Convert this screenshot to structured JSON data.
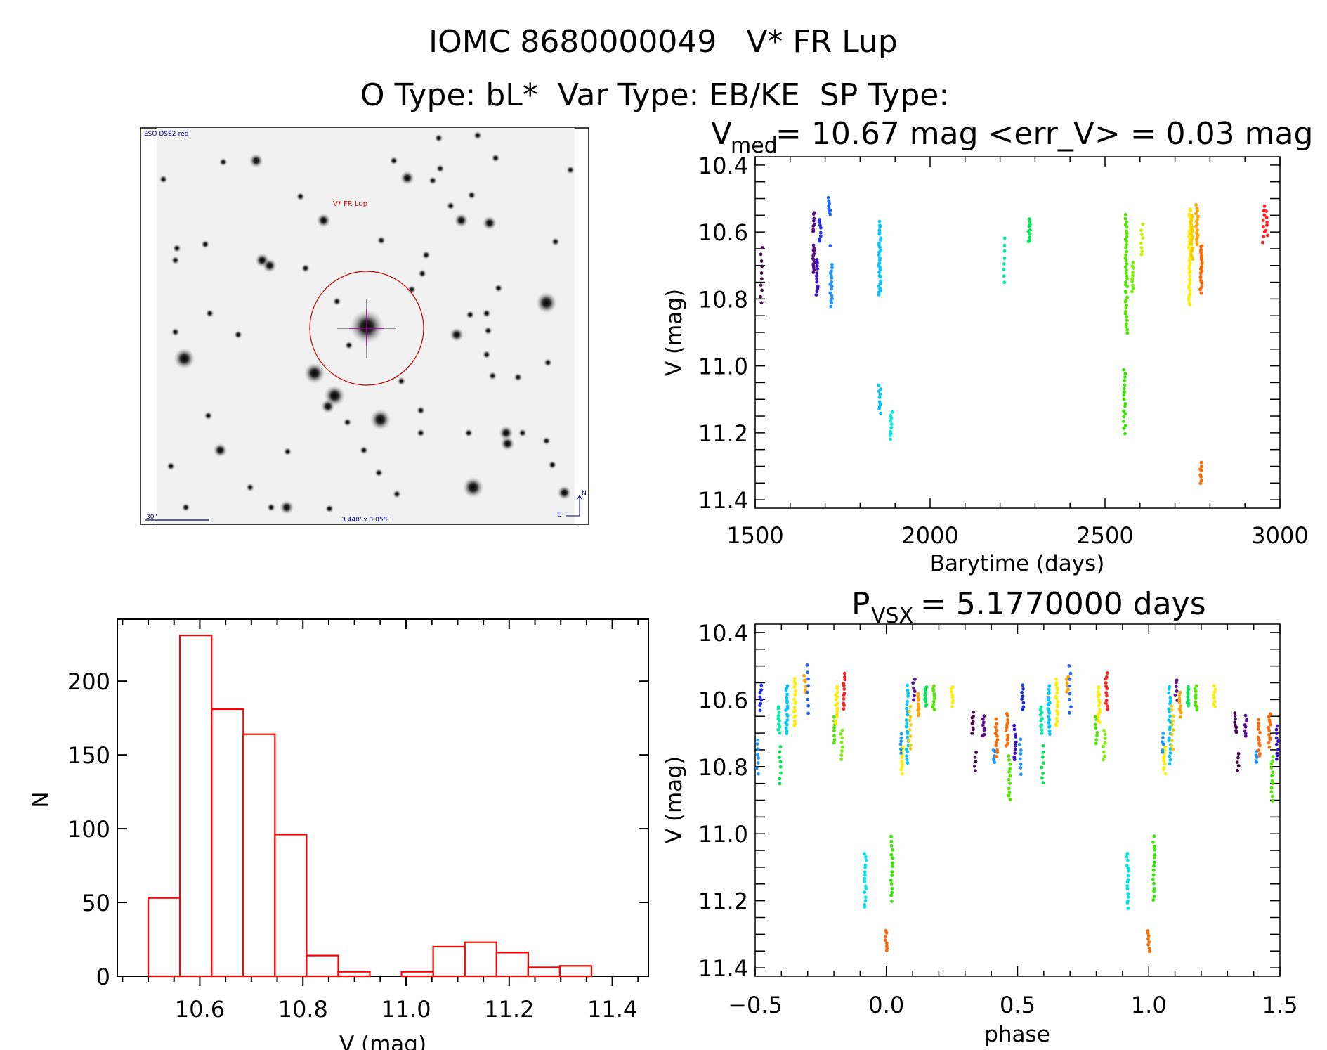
{
  "header": {
    "title": "IOMC 8680000049   V* FR Lup",
    "subtitle": "O Type: bL*  Var Type: EB/KE  SP Type:"
  },
  "finder_image": {
    "survey_label": "ESO DSS2-red",
    "target_label": "V* FR Lup",
    "scale_label": "30\"",
    "field_size_label": "3.448' x 3.058'",
    "north_label": "N",
    "east_label": "E"
  },
  "colors": {
    "hist": "#ff0000",
    "circle": "#c00000",
    "crosshair": "#9a009a",
    "overlay_text": "#00008c"
  },
  "chart_data": [
    {
      "id": "light_curve",
      "type": "scatter",
      "title_main": "V",
      "title_sub": "med",
      "title_rest": " = 10.67 mag <err_V> = 0.03 mag",
      "xlabel": "Barytime (days)",
      "ylabel": "V (mag)",
      "xlim": [
        1500,
        3000
      ],
      "ylim": [
        10.375,
        11.425
      ],
      "y_inverted": true,
      "xticks": [
        {
          "v": 1500,
          "label": "1500"
        },
        {
          "v": 2000,
          "label": "2000"
        },
        {
          "v": 2500,
          "label": "2500"
        },
        {
          "v": 3000,
          "label": "3000"
        }
      ],
      "yticks": [
        {
          "v": 10.4,
          "label": "10.4"
        },
        {
          "v": 10.6,
          "label": "10.6"
        },
        {
          "v": 10.8,
          "label": "10.8"
        },
        {
          "v": 11.0,
          "label": "11.0"
        },
        {
          "v": 11.2,
          "label": "11.2"
        },
        {
          "v": 11.4,
          "label": "11.4"
        }
      ],
      "groups": [
        {
          "t": 1518,
          "v": [
            10.65,
            10.81
          ],
          "n": 10,
          "color": "#4b0a50"
        },
        {
          "t": 1667,
          "v": [
            10.54,
            10.6
          ],
          "n": 8,
          "color": "#5a0a8c"
        },
        {
          "t": 1668,
          "v": [
            10.64,
            10.72
          ],
          "n": 14,
          "color": "#5a0a8c"
        },
        {
          "t": 1677,
          "v": [
            10.68,
            10.79
          ],
          "n": 12,
          "color": "#3c14c8"
        },
        {
          "t": 1685,
          "v": [
            10.56,
            10.63
          ],
          "n": 8,
          "color": "#2030e0"
        },
        {
          "t": 1712,
          "v": [
            10.5,
            10.55
          ],
          "n": 8,
          "color": "#1e64ff"
        },
        {
          "t": 1712,
          "v": [
            10.64,
            10.64
          ],
          "n": 1,
          "color": "#1e64ff"
        },
        {
          "t": 1717,
          "v": [
            10.7,
            10.82
          ],
          "n": 16,
          "color": "#1e96ff"
        },
        {
          "t": 1856,
          "v": [
            10.57,
            10.79
          ],
          "n": 30,
          "color": "#00c8ff"
        },
        {
          "t": 1856,
          "v": [
            11.06,
            11.14
          ],
          "n": 10,
          "color": "#00c8ff"
        },
        {
          "t": 1889,
          "v": [
            11.14,
            11.22
          ],
          "n": 10,
          "color": "#00e6e6"
        },
        {
          "t": 2211,
          "v": [
            10.62,
            10.75
          ],
          "n": 8,
          "color": "#00f0a0"
        },
        {
          "t": 2283,
          "v": [
            10.56,
            10.63
          ],
          "n": 10,
          "color": "#00e650"
        },
        {
          "t": 2556,
          "v": [
            11.01,
            11.2
          ],
          "n": 18,
          "color": "#32e600"
        },
        {
          "t": 2561,
          "v": [
            10.55,
            10.9
          ],
          "n": 40,
          "color": "#50e600"
        },
        {
          "t": 2580,
          "v": [
            10.69,
            10.78
          ],
          "n": 10,
          "color": "#78f000"
        },
        {
          "t": 2606,
          "v": [
            10.58,
            10.67
          ],
          "n": 8,
          "color": "#c8f000"
        },
        {
          "t": 2742,
          "v": [
            10.53,
            10.82
          ],
          "n": 40,
          "color": "#ffee00"
        },
        {
          "t": 2748,
          "v": [
            10.55,
            10.68
          ],
          "n": 20,
          "color": "#f0d000"
        },
        {
          "t": 2763,
          "v": [
            10.52,
            10.64
          ],
          "n": 16,
          "color": "#ffa500"
        },
        {
          "t": 2775,
          "v": [
            10.64,
            10.78
          ],
          "n": 24,
          "color": "#ff6a00"
        },
        {
          "t": 2775,
          "v": [
            11.29,
            11.35
          ],
          "n": 8,
          "color": "#ff6a00"
        },
        {
          "t": 2953,
          "v": [
            10.52,
            10.63
          ],
          "n": 8,
          "color": "#ff1e1e"
        },
        {
          "t": 2963,
          "v": [
            10.54,
            10.61
          ],
          "n": 6,
          "color": "#ff1e1e"
        }
      ]
    },
    {
      "id": "phase_curve",
      "type": "scatter",
      "title_main": "P",
      "title_sub": "VSX",
      "title_rest": " = 5.1770000 days",
      "xlabel": "phase",
      "ylabel": "V (mag)",
      "xlim": [
        -0.5,
        1.5
      ],
      "ylim": [
        10.375,
        11.425
      ],
      "y_inverted": true,
      "xticks": [
        {
          "v": -0.5,
          "label": "−0.5"
        },
        {
          "v": 0.0,
          "label": "0.0"
        },
        {
          "v": 0.5,
          "label": "0.5"
        },
        {
          "v": 1.0,
          "label": "1.0"
        },
        {
          "v": 1.5,
          "label": "1.5"
        }
      ],
      "yticks": [
        {
          "v": 10.4,
          "label": "10.4"
        },
        {
          "v": 10.6,
          "label": "10.6"
        },
        {
          "v": 10.8,
          "label": "10.8"
        },
        {
          "v": 11.0,
          "label": "11.0"
        },
        {
          "v": 11.2,
          "label": "11.2"
        },
        {
          "v": 11.4,
          "label": "11.4"
        }
      ],
      "groups": [
        {
          "phase": 0.0,
          "v": [
            11.29,
            11.35
          ],
          "n": 8,
          "color": "#ff6a00"
        },
        {
          "phase": 0.02,
          "v": [
            11.01,
            11.2
          ],
          "n": 16,
          "color": "#32e600"
        },
        {
          "phase": 0.92,
          "v": [
            11.06,
            11.22
          ],
          "n": 16,
          "color": "#00e6e6"
        },
        {
          "phase": 0.06,
          "v": [
            10.74,
            10.82
          ],
          "n": 10,
          "color": "#ffee00"
        },
        {
          "phase": 0.055,
          "v": [
            10.7,
            10.76
          ],
          "n": 6,
          "color": "#1e96ff"
        },
        {
          "phase": 0.08,
          "v": [
            10.56,
            10.79
          ],
          "n": 22,
          "color": "#00c8ff"
        },
        {
          "phase": 0.09,
          "v": [
            10.62,
            10.75
          ],
          "n": 10,
          "color": "#f0d000"
        },
        {
          "phase": 0.105,
          "v": [
            10.54,
            10.6
          ],
          "n": 6,
          "color": "#5a0a8c"
        },
        {
          "phase": 0.12,
          "v": [
            10.58,
            10.65
          ],
          "n": 10,
          "color": "#ffa500"
        },
        {
          "phase": 0.15,
          "v": [
            10.56,
            10.62
          ],
          "n": 10,
          "color": "#00e650"
        },
        {
          "phase": 0.18,
          "v": [
            10.56,
            10.63
          ],
          "n": 10,
          "color": "#50e600"
        },
        {
          "phase": 0.25,
          "v": [
            10.56,
            10.62
          ],
          "n": 8,
          "color": "#ffee00"
        },
        {
          "phase": 0.33,
          "v": [
            10.64,
            10.7
          ],
          "n": 8,
          "color": "#4b0a50"
        },
        {
          "phase": 0.34,
          "v": [
            10.76,
            10.81
          ],
          "n": 5,
          "color": "#4b0a50"
        },
        {
          "phase": 0.37,
          "v": [
            10.65,
            10.71
          ],
          "n": 8,
          "color": "#5a0a8c"
        },
        {
          "phase": 0.41,
          "v": [
            10.75,
            10.79
          ],
          "n": 6,
          "color": "#1e96ff"
        },
        {
          "phase": 0.42,
          "v": [
            10.66,
            10.77
          ],
          "n": 12,
          "color": "#ff6a00"
        },
        {
          "phase": 0.46,
          "v": [
            10.64,
            10.74
          ],
          "n": 12,
          "color": "#ff6a00"
        },
        {
          "phase": 0.47,
          "v": [
            10.77,
            10.9
          ],
          "n": 12,
          "color": "#50e600"
        },
        {
          "phase": 0.49,
          "v": [
            10.68,
            10.78
          ],
          "n": 10,
          "color": "#3c14c8"
        },
        {
          "phase": 0.51,
          "v": [
            10.72,
            10.82
          ],
          "n": 8,
          "color": "#1e96ff"
        },
        {
          "phase": 0.52,
          "v": [
            10.56,
            10.63
          ],
          "n": 8,
          "color": "#2030e0"
        },
        {
          "phase": 0.59,
          "v": [
            10.62,
            10.7
          ],
          "n": 10,
          "color": "#00f0a0"
        },
        {
          "phase": 0.595,
          "v": [
            10.74,
            10.85
          ],
          "n": 8,
          "color": "#00e650"
        },
        {
          "phase": 0.62,
          "v": [
            10.56,
            10.7
          ],
          "n": 18,
          "color": "#00c8ff"
        },
        {
          "phase": 0.65,
          "v": [
            10.54,
            10.68
          ],
          "n": 18,
          "color": "#ffee00"
        },
        {
          "phase": 0.69,
          "v": [
            10.53,
            10.58
          ],
          "n": 6,
          "color": "#ffa500"
        },
        {
          "phase": 0.7,
          "v": [
            10.5,
            10.64
          ],
          "n": 8,
          "color": "#1e64ff"
        },
        {
          "phase": 0.8,
          "v": [
            10.65,
            10.73
          ],
          "n": 8,
          "color": "#50e600"
        },
        {
          "phase": 0.81,
          "v": [
            10.56,
            10.67
          ],
          "n": 14,
          "color": "#ffee00"
        },
        {
          "phase": 0.83,
          "v": [
            10.69,
            10.78
          ],
          "n": 8,
          "color": "#78f000"
        },
        {
          "phase": 0.84,
          "v": [
            10.52,
            10.63
          ],
          "n": 12,
          "color": "#ff1e1e"
        }
      ]
    },
    {
      "id": "histogram",
      "type": "bar",
      "title": "",
      "xlabel": "V (mag)",
      "ylabel": "N",
      "xlim": [
        10.44,
        11.47
      ],
      "ylim": [
        0,
        242
      ],
      "bin_start": 10.5,
      "bin_width": 0.0614,
      "counts": [
        53,
        231,
        181,
        164,
        96,
        14,
        3,
        0,
        3,
        20,
        23,
        16,
        6,
        7
      ],
      "xticks": [
        {
          "v": 10.6,
          "label": "10.6"
        },
        {
          "v": 10.8,
          "label": "10.8"
        },
        {
          "v": 11.0,
          "label": "11.0"
        },
        {
          "v": 11.2,
          "label": "11.2"
        },
        {
          "v": 11.4,
          "label": "11.4"
        }
      ],
      "yticks": [
        {
          "v": 0,
          "label": "0"
        },
        {
          "v": 50,
          "label": "50"
        },
        {
          "v": 100,
          "label": "100"
        },
        {
          "v": 150,
          "label": "150"
        },
        {
          "v": 200,
          "label": "200"
        }
      ]
    }
  ]
}
